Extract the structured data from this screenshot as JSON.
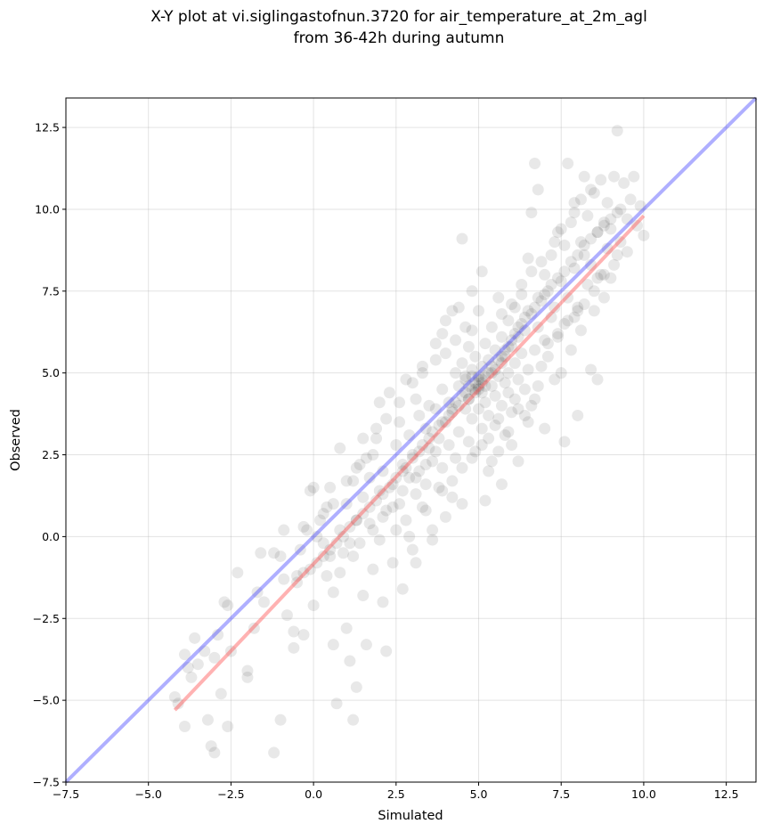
{
  "chart_data": {
    "type": "scatter",
    "title_line1": "X-Y plot at vi.siglingastofnun.3720 for air_temperature_at_2m_agl",
    "title_line2": "from 36-42h during autumn",
    "xlabel": "Simulated",
    "ylabel": "Observed",
    "xlim": [
      -7.5,
      13.4
    ],
    "ylim": [
      -7.5,
      13.4
    ],
    "xticks": [
      -7.5,
      -5.0,
      -2.5,
      0.0,
      2.5,
      5.0,
      7.5,
      10.0,
      12.5
    ],
    "yticks": [
      -7.5,
      -5.0,
      -2.5,
      0.0,
      2.5,
      5.0,
      7.5,
      10.0,
      12.5
    ],
    "xtick_labels": [
      "−7.5",
      "−5.0",
      "−2.5",
      "0.0",
      "2.5",
      "5.0",
      "7.5",
      "10.0",
      "12.5"
    ],
    "ytick_labels": [
      "−7.5",
      "−5.0",
      "−2.5",
      "0.0",
      "2.5",
      "5.0",
      "7.5",
      "10.0",
      "12.5"
    ],
    "grid": true,
    "point_color": "#000000",
    "identity_line": {
      "color": "#4d4dff",
      "x": [
        -7.5,
        13.4
      ],
      "y": [
        -7.5,
        13.4
      ]
    },
    "fit_line": {
      "color": "#ff5555",
      "x": [
        -4.2,
        10.0
      ],
      "y": [
        -5.3,
        9.8
      ]
    },
    "points": [
      [
        -4.2,
        -4.9
      ],
      [
        -4.1,
        -5.1
      ],
      [
        -3.9,
        -3.6
      ],
      [
        -3.8,
        -4.0
      ],
      [
        -3.7,
        -4.3
      ],
      [
        -3.9,
        -5.8
      ],
      [
        -3.6,
        -3.1
      ],
      [
        -3.5,
        -3.9
      ],
      [
        -3.3,
        -3.5
      ],
      [
        -3.2,
        -5.6
      ],
      [
        -3.1,
        -6.4
      ],
      [
        -3.0,
        -6.6
      ],
      [
        -3.0,
        -3.7
      ],
      [
        -2.9,
        -3.0
      ],
      [
        -2.8,
        -4.8
      ],
      [
        -2.7,
        -2.0
      ],
      [
        -2.6,
        -2.1
      ],
      [
        -2.5,
        -3.5
      ],
      [
        -2.6,
        -5.8
      ],
      [
        -2.3,
        -1.1
      ],
      [
        -2.0,
        -4.3
      ],
      [
        -2.0,
        -4.1
      ],
      [
        -1.8,
        -2.8
      ],
      [
        -1.6,
        -0.5
      ],
      [
        -1.7,
        -1.7
      ],
      [
        -1.5,
        -2.0
      ],
      [
        -1.2,
        -6.6
      ],
      [
        -1.0,
        -5.6
      ],
      [
        -1.0,
        -0.6
      ],
      [
        -0.9,
        -1.3
      ],
      [
        -0.8,
        -2.4
      ],
      [
        -0.6,
        -3.4
      ],
      [
        -0.6,
        -2.9
      ],
      [
        -0.5,
        -1.2
      ],
      [
        -0.4,
        -0.4
      ],
      [
        -0.3,
        -3.0
      ],
      [
        -0.2,
        0.2
      ],
      [
        -0.1,
        1.4
      ],
      [
        0.0,
        -2.1
      ],
      [
        0.0,
        1.5
      ],
      [
        -1.2,
        -0.5
      ],
      [
        -0.9,
        0.2
      ],
      [
        -0.3,
        0.3
      ],
      [
        0.1,
        0.0
      ],
      [
        0.2,
        0.5
      ],
      [
        0.3,
        -0.2
      ],
      [
        0.4,
        -1.2
      ],
      [
        0.4,
        0.9
      ],
      [
        0.5,
        -0.6
      ],
      [
        0.5,
        1.5
      ],
      [
        0.6,
        -3.3
      ],
      [
        0.6,
        -1.7
      ],
      [
        0.7,
        -5.1
      ],
      [
        0.8,
        0.2
      ],
      [
        0.8,
        2.7
      ],
      [
        0.9,
        -0.5
      ],
      [
        1.0,
        1.0
      ],
      [
        1.0,
        -2.8
      ],
      [
        1.1,
        -0.2
      ],
      [
        1.1,
        -3.8
      ],
      [
        1.2,
        -5.6
      ],
      [
        1.2,
        1.7
      ],
      [
        1.3,
        -4.6
      ],
      [
        1.3,
        0.5
      ],
      [
        1.4,
        2.2
      ],
      [
        1.5,
        -1.8
      ],
      [
        1.5,
        1.2
      ],
      [
        1.6,
        -3.3
      ],
      [
        1.7,
        0.4
      ],
      [
        1.7,
        1.8
      ],
      [
        1.8,
        -1.0
      ],
      [
        1.8,
        2.5
      ],
      [
        1.9,
        3.0
      ],
      [
        2.0,
        -0.1
      ],
      [
        2.0,
        1.4
      ],
      [
        2.1,
        -2.0
      ],
      [
        2.1,
        2.0
      ],
      [
        2.2,
        -3.5
      ],
      [
        2.2,
        0.8
      ],
      [
        2.3,
        4.4
      ],
      [
        2.4,
        1.6
      ],
      [
        2.4,
        -0.8
      ],
      [
        2.5,
        2.8
      ],
      [
        2.5,
        0.2
      ],
      [
        2.6,
        1.0
      ],
      [
        2.6,
        3.5
      ],
      [
        2.7,
        -1.6
      ],
      [
        2.7,
        2.2
      ],
      [
        2.8,
        4.8
      ],
      [
        2.8,
        0.5
      ],
      [
        2.9,
        1.8
      ],
      [
        2.9,
        3.1
      ],
      [
        3.0,
        -0.4
      ],
      [
        3.0,
        2.5
      ],
      [
        3.1,
        4.2
      ],
      [
        3.1,
        1.3
      ],
      [
        3.2,
        3.7
      ],
      [
        3.2,
        2.0
      ],
      [
        3.3,
        0.9
      ],
      [
        3.3,
        5.0
      ],
      [
        3.4,
        3.3
      ],
      [
        3.4,
        1.6
      ],
      [
        3.5,
        2.7
      ],
      [
        3.5,
        4.0
      ],
      [
        3.6,
        0.2
      ],
      [
        3.6,
        2.3
      ],
      [
        3.7,
        3.9
      ],
      [
        3.7,
        5.4
      ],
      [
        3.8,
        1.5
      ],
      [
        3.8,
        3.0
      ],
      [
        3.9,
        4.5
      ],
      [
        3.9,
        2.1
      ],
      [
        4.0,
        3.5
      ],
      [
        4.0,
        6.6
      ],
      [
        4.1,
        2.8
      ],
      [
        4.1,
        4.1
      ],
      [
        4.2,
        1.2
      ],
      [
        4.2,
        3.8
      ],
      [
        4.3,
        5.0
      ],
      [
        4.3,
        2.4
      ],
      [
        4.4,
        4.6
      ],
      [
        4.4,
        3.2
      ],
      [
        4.5,
        9.1
      ],
      [
        4.5,
        5.3
      ],
      [
        4.5,
        1.0
      ],
      [
        4.6,
        3.9
      ],
      [
        4.6,
        4.9
      ],
      [
        4.7,
        2.9
      ],
      [
        4.7,
        5.8
      ],
      [
        4.7,
        4.2
      ],
      [
        4.8,
        3.6
      ],
      [
        4.8,
        5.1
      ],
      [
        4.8,
        6.3
      ],
      [
        4.9,
        4.4
      ],
      [
        4.9,
        2.6
      ],
      [
        4.9,
        5.5
      ],
      [
        5.0,
        4.8
      ],
      [
        5.0,
        3.9
      ],
      [
        5.0,
        6.9
      ],
      [
        5.0,
        4.5
      ],
      [
        5.1,
        5.2
      ],
      [
        5.1,
        8.1
      ],
      [
        5.1,
        3.3
      ],
      [
        5.1,
        4.7
      ],
      [
        5.2,
        4.1
      ],
      [
        5.2,
        5.9
      ],
      [
        5.2,
        4.9
      ],
      [
        5.3,
        3.7
      ],
      [
        5.3,
        5.4
      ],
      [
        5.3,
        2.0
      ],
      [
        5.4,
        4.6
      ],
      [
        5.4,
        6.4
      ],
      [
        5.4,
        5.0
      ],
      [
        5.5,
        3.4
      ],
      [
        5.5,
        5.7
      ],
      [
        5.5,
        4.3
      ],
      [
        5.6,
        4.9
      ],
      [
        5.6,
        7.3
      ],
      [
        5.6,
        2.6
      ],
      [
        5.7,
        5.3
      ],
      [
        5.7,
        4.0
      ],
      [
        5.7,
        6.1
      ],
      [
        5.8,
        4.7
      ],
      [
        5.8,
        5.5
      ],
      [
        5.8,
        3.1
      ],
      [
        5.9,
        6.6
      ],
      [
        5.9,
        4.4
      ],
      [
        5.9,
        5.0
      ],
      [
        6.0,
        3.8
      ],
      [
        6.0,
        5.8
      ],
      [
        6.1,
        7.0
      ],
      [
        6.1,
        4.2
      ],
      [
        6.1,
        5.3
      ],
      [
        6.2,
        6.1
      ],
      [
        6.2,
        2.3
      ],
      [
        6.2,
        4.8
      ],
      [
        6.3,
        5.6
      ],
      [
        6.3,
        7.4
      ],
      [
        6.4,
        4.5
      ],
      [
        6.4,
        6.3
      ],
      [
        6.5,
        3.5
      ],
      [
        6.5,
        5.1
      ],
      [
        6.5,
        8.5
      ],
      [
        6.6,
        6.8
      ],
      [
        6.6,
        4.0
      ],
      [
        6.6,
        9.9
      ],
      [
        6.7,
        5.7
      ],
      [
        6.7,
        11.4
      ],
      [
        6.8,
        6.4
      ],
      [
        6.8,
        4.6
      ],
      [
        6.8,
        10.6
      ],
      [
        6.9,
        7.2
      ],
      [
        6.9,
        5.2
      ],
      [
        7.0,
        8.0
      ],
      [
        7.0,
        6.0
      ],
      [
        7.0,
        3.3
      ],
      [
        7.1,
        7.5
      ],
      [
        7.1,
        5.5
      ],
      [
        7.2,
        6.7
      ],
      [
        7.2,
        8.6
      ],
      [
        7.3,
        4.8
      ],
      [
        7.3,
        7.0
      ],
      [
        7.4,
        9.3
      ],
      [
        7.4,
        6.2
      ],
      [
        7.5,
        5.0
      ],
      [
        7.5,
        7.8
      ],
      [
        7.6,
        8.9
      ],
      [
        7.6,
        2.9
      ],
      [
        7.6,
        6.5
      ],
      [
        7.7,
        11.4
      ],
      [
        7.7,
        7.3
      ],
      [
        7.8,
        9.6
      ],
      [
        7.8,
        5.7
      ],
      [
        7.9,
        8.2
      ],
      [
        7.9,
        10.2
      ],
      [
        8.0,
        7.0
      ],
      [
        8.0,
        3.7
      ],
      [
        8.1,
        9.0
      ],
      [
        8.1,
        6.3
      ],
      [
        8.2,
        8.6
      ],
      [
        8.2,
        11.0
      ],
      [
        8.3,
        7.7
      ],
      [
        8.3,
        9.8
      ],
      [
        8.4,
        5.1
      ],
      [
        8.4,
        8.3
      ],
      [
        8.5,
        10.5
      ],
      [
        8.5,
        6.9
      ],
      [
        8.6,
        9.3
      ],
      [
        8.6,
        4.8
      ],
      [
        8.7,
        8.0
      ],
      [
        8.7,
        10.9
      ],
      [
        8.8,
        9.6
      ],
      [
        8.8,
        7.3
      ],
      [
        8.9,
        8.8
      ],
      [
        8.9,
        10.2
      ],
      [
        9.0,
        9.4
      ],
      [
        9.0,
        7.9
      ],
      [
        9.1,
        11.0
      ],
      [
        9.2,
        12.4
      ],
      [
        9.2,
        8.6
      ],
      [
        9.3,
        10.0
      ],
      [
        9.3,
        9.0
      ],
      [
        9.4,
        10.8
      ],
      [
        9.5,
        9.7
      ],
      [
        9.5,
        8.7
      ],
      [
        9.6,
        10.3
      ],
      [
        9.7,
        11.0
      ],
      [
        9.8,
        9.5
      ],
      [
        9.9,
        10.1
      ],
      [
        10.0,
        9.2
      ],
      [
        4.6,
        4.4
      ],
      [
        4.7,
        4.6
      ],
      [
        4.8,
        4.5
      ],
      [
        4.9,
        4.7
      ],
      [
        5.0,
        4.6
      ],
      [
        5.1,
        4.8
      ],
      [
        5.0,
        4.9
      ],
      [
        4.9,
        4.5
      ],
      [
        5.2,
        4.6
      ],
      [
        5.1,
        4.4
      ],
      [
        4.8,
        4.9
      ],
      [
        5.3,
        5.0
      ],
      [
        4.7,
        4.2
      ],
      [
        5.4,
        5.2
      ],
      [
        4.6,
        4.8
      ],
      [
        5.5,
        5.1
      ],
      [
        4.5,
        4.3
      ],
      [
        5.6,
        5.4
      ],
      [
        4.4,
        4.0
      ],
      [
        5.7,
        5.5
      ],
      [
        4.3,
        4.1
      ],
      [
        5.8,
        5.7
      ],
      [
        4.2,
        3.9
      ],
      [
        5.9,
        5.8
      ],
      [
        4.1,
        3.7
      ],
      [
        6.0,
        6.0
      ],
      [
        3.9,
        3.5
      ],
      [
        6.1,
        6.2
      ],
      [
        3.8,
        3.4
      ],
      [
        6.2,
        6.4
      ],
      [
        3.6,
        3.2
      ],
      [
        6.3,
        6.5
      ],
      [
        3.5,
        3.0
      ],
      [
        6.4,
        6.7
      ],
      [
        3.3,
        2.8
      ],
      [
        6.5,
        6.9
      ],
      [
        3.2,
        2.6
      ],
      [
        6.7,
        7.0
      ],
      [
        3.0,
        2.4
      ],
      [
        6.8,
        7.3
      ],
      [
        2.8,
        2.1
      ],
      [
        7.0,
        7.4
      ],
      [
        2.7,
        2.0
      ],
      [
        7.2,
        7.7
      ],
      [
        2.5,
        1.8
      ],
      [
        7.4,
        7.9
      ],
      [
        2.3,
        1.5
      ],
      [
        7.6,
        8.1
      ],
      [
        2.1,
        1.3
      ],
      [
        7.8,
        8.4
      ],
      [
        1.9,
        1.1
      ],
      [
        8.0,
        8.6
      ],
      [
        1.7,
        0.9
      ],
      [
        8.2,
        8.9
      ],
      [
        1.5,
        0.7
      ],
      [
        8.4,
        9.1
      ],
      [
        1.3,
        0.5
      ],
      [
        8.6,
        9.3
      ],
      [
        1.1,
        0.3
      ],
      [
        8.8,
        9.5
      ],
      [
        0.9,
        0.0
      ],
      [
        9.0,
        9.7
      ],
      [
        0.7,
        -0.2
      ],
      [
        9.2,
        9.9
      ],
      [
        0.5,
        -0.4
      ],
      [
        0.3,
        -0.6
      ],
      [
        0.1,
        -0.8
      ],
      [
        -0.1,
        -1.0
      ],
      [
        -0.3,
        -1.1
      ],
      [
        -0.5,
        -1.4
      ],
      [
        5.3,
        3.0
      ],
      [
        5.6,
        3.6
      ],
      [
        5.9,
        3.2
      ],
      [
        6.2,
        3.9
      ],
      [
        6.0,
        2.8
      ],
      [
        5.4,
        2.3
      ],
      [
        5.7,
        1.6
      ],
      [
        5.2,
        1.1
      ],
      [
        6.4,
        3.7
      ],
      [
        6.7,
        4.2
      ],
      [
        4.3,
        6.0
      ],
      [
        4.0,
        5.6
      ],
      [
        3.7,
        5.9
      ],
      [
        4.6,
        6.4
      ],
      [
        4.2,
        6.9
      ],
      [
        3.3,
        5.2
      ],
      [
        3.0,
        4.7
      ],
      [
        2.6,
        4.1
      ],
      [
        2.2,
        3.6
      ],
      [
        1.9,
        3.3
      ],
      [
        1.6,
        2.4
      ],
      [
        1.3,
        2.1
      ],
      [
        1.0,
        1.7
      ],
      [
        0.6,
        1.0
      ],
      [
        0.3,
        0.7
      ],
      [
        2.0,
        4.1
      ],
      [
        1.5,
        3.0
      ],
      [
        3.9,
        6.2
      ],
      [
        4.4,
        7.0
      ],
      [
        4.8,
        7.5
      ],
      [
        7.3,
        9.0
      ],
      [
        7.5,
        9.4
      ],
      [
        7.9,
        9.9
      ],
      [
        8.1,
        10.3
      ],
      [
        8.4,
        10.6
      ],
      [
        6.9,
        8.4
      ],
      [
        6.6,
        8.1
      ],
      [
        6.3,
        7.7
      ],
      [
        6.0,
        7.1
      ],
      [
        5.7,
        6.8
      ],
      [
        7.9,
        6.7
      ],
      [
        8.2,
        7.1
      ],
      [
        8.5,
        7.5
      ],
      [
        8.8,
        8.0
      ],
      [
        9.1,
        8.3
      ],
      [
        7.1,
        5.9
      ],
      [
        7.4,
        6.1
      ],
      [
        7.7,
        6.6
      ],
      [
        8.0,
        6.9
      ],
      [
        8.6,
        7.9
      ],
      [
        2.4,
        0.9
      ],
      [
        2.7,
        1.4
      ],
      [
        3.1,
        1.8
      ],
      [
        3.4,
        2.2
      ],
      [
        3.7,
        2.6
      ],
      [
        1.8,
        0.2
      ],
      [
        2.1,
        0.6
      ],
      [
        1.4,
        -0.2
      ],
      [
        1.2,
        -0.6
      ],
      [
        0.8,
        -1.1
      ],
      [
        4.5,
        2.1
      ],
      [
        4.8,
        2.4
      ],
      [
        5.1,
        2.8
      ],
      [
        4.2,
        1.7
      ],
      [
        3.9,
        1.4
      ],
      [
        3.4,
        0.8
      ],
      [
        4.0,
        0.6
      ],
      [
        3.6,
        -0.1
      ],
      [
        2.9,
        0.0
      ],
      [
        3.1,
        -0.8
      ]
    ]
  }
}
